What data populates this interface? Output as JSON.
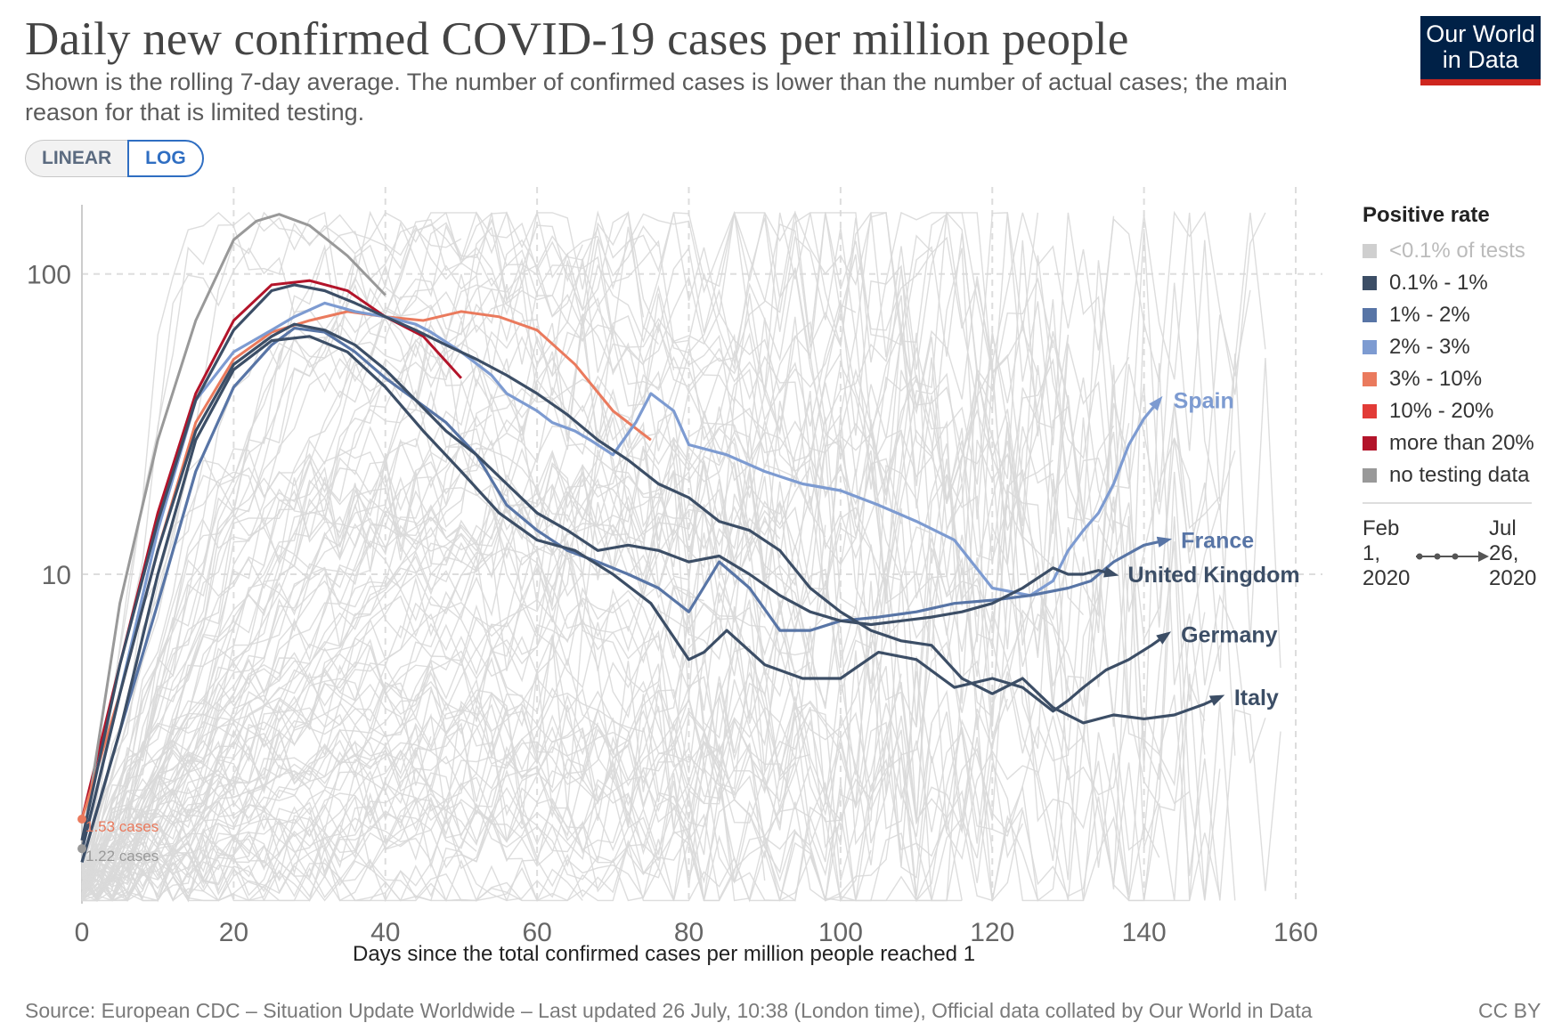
{
  "header": {
    "title": "Daily new confirmed COVID-19 cases per million people",
    "subtitle": "Shown is the rolling 7-day average. The number of confirmed cases is lower than the number of actual cases; the main reason for that is limited testing.",
    "logo_line1": "Our World",
    "logo_line2": "in Data"
  },
  "toggle": {
    "linear_label": "LINEAR",
    "log_label": "LOG",
    "selected": "LOG"
  },
  "footer": {
    "source": "Source: European CDC – Situation Update Worldwide – Last updated 26 July, 10:38 (London time), Official data collated by Our World in Data",
    "license": "CC BY"
  },
  "legend": {
    "title": "Positive rate",
    "items": [
      {
        "label": "<0.1% of tests",
        "color": "#cfcfcf",
        "muted": true
      },
      {
        "label": "0.1% - 1%",
        "color": "#3c4e66"
      },
      {
        "label": "1% - 2%",
        "color": "#5875a6"
      },
      {
        "label": "2% - 3%",
        "color": "#7d9bd1"
      },
      {
        "label": "3% - 10%",
        "color": "#ea7a5d"
      },
      {
        "label": "10% - 20%",
        "color": "#e23b37"
      },
      {
        "label": "more than 20%",
        "color": "#b3142a"
      },
      {
        "label": "no testing data",
        "color": "#999999"
      }
    ],
    "timeline_start": "Feb\n1,\n2020",
    "timeline_end": "Jul\n26,\n2020"
  },
  "chart_data": {
    "type": "line",
    "title": "Daily new confirmed COVID-19 cases per million people",
    "xlabel": "Days since the total confirmed cases per million people reached 1",
    "ylabel": "",
    "yscale": "log",
    "xlim": [
      0,
      160
    ],
    "ylim": [
      0.8,
      170
    ],
    "xticks": [
      0,
      20,
      40,
      60,
      80,
      100,
      120,
      140,
      160
    ],
    "yticks": [
      {
        "value": 10,
        "label": "10"
      },
      {
        "value": 100,
        "label": "100"
      }
    ],
    "grid": true,
    "start_annotations": [
      {
        "label": "1.53 cases",
        "x": 0,
        "y": 1.53,
        "color": "#ea7a5d"
      },
      {
        "label": "1.22 cases",
        "x": 0,
        "y": 1.22,
        "color": "#999999"
      }
    ],
    "series": [
      {
        "name": "Spain",
        "label_color": "#7d9bd1",
        "line_color": "#7d9bd1",
        "x": [
          0,
          5,
          10,
          15,
          20,
          25,
          28,
          32,
          36,
          40,
          44,
          46,
          50,
          54,
          56,
          60,
          62,
          65,
          67,
          70,
          73,
          75,
          78,
          80,
          85,
          90,
          95,
          100,
          105,
          110,
          115,
          120,
          125,
          128,
          130,
          132,
          134,
          136,
          138,
          140,
          142
        ],
        "y": [
          1.2,
          4,
          14,
          38,
          55,
          65,
          72,
          80,
          75,
          72,
          68,
          64,
          55,
          46,
          40,
          35,
          32,
          30,
          28,
          25,
          32,
          40,
          35,
          27,
          25,
          22,
          20,
          19,
          17,
          15,
          13,
          9,
          8.5,
          9.5,
          12,
          14,
          16,
          20,
          27,
          33,
          38
        ]
      },
      {
        "name": "France",
        "label_color": "#5875a6",
        "line_color": "#5875a6",
        "x": [
          0,
          5,
          10,
          15,
          20,
          25,
          28,
          32,
          36,
          40,
          44,
          48,
          52,
          56,
          60,
          64,
          68,
          72,
          76,
          80,
          84,
          88,
          92,
          96,
          100,
          105,
          110,
          115,
          120,
          125,
          130,
          133,
          136,
          140,
          143
        ],
        "y": [
          1.1,
          3,
          8,
          22,
          42,
          58,
          66,
          64,
          55,
          45,
          38,
          32,
          25,
          17,
          14,
          12,
          11,
          10,
          9,
          7.5,
          11,
          9,
          6.5,
          6.5,
          7,
          7.2,
          7.5,
          8,
          8.2,
          8.5,
          9,
          9.5,
          11,
          12.5,
          13
        ]
      },
      {
        "name": "United Kingdom",
        "label_color": "#3c4e66",
        "line_color": "#3c4e66",
        "x": [
          0,
          5,
          10,
          15,
          20,
          25,
          28,
          32,
          36,
          40,
          44,
          48,
          52,
          56,
          60,
          64,
          68,
          72,
          76,
          80,
          84,
          88,
          92,
          96,
          100,
          104,
          108,
          112,
          116,
          120,
          124,
          128,
          130,
          132,
          134,
          136
        ],
        "y": [
          1.2,
          4,
          12,
          30,
          50,
          62,
          68,
          65,
          58,
          48,
          38,
          30,
          25,
          20,
          16,
          14,
          12,
          12.5,
          12,
          11,
          11.5,
          10,
          8.5,
          7.5,
          7,
          6.8,
          7,
          7.2,
          7.5,
          8,
          9,
          10.5,
          10,
          10,
          10.3,
          10
        ]
      },
      {
        "name": "Germany",
        "label_color": "#3c4e66",
        "line_color": "#3c4e66",
        "x": [
          0,
          5,
          10,
          15,
          20,
          25,
          30,
          35,
          40,
          45,
          50,
          55,
          60,
          65,
          70,
          75,
          80,
          82,
          85,
          90,
          95,
          100,
          105,
          110,
          115,
          120,
          124,
          128,
          130,
          132,
          135,
          138,
          141,
          143
        ],
        "y": [
          1.1,
          3,
          10,
          28,
          48,
          60,
          62,
          55,
          42,
          30,
          22,
          16,
          13,
          12,
          10,
          8,
          5.2,
          5.5,
          6.5,
          5,
          4.5,
          4.5,
          5.5,
          5.2,
          4.2,
          4.5,
          4.2,
          3.5,
          3.8,
          4.2,
          4.8,
          5.2,
          5.8,
          6.3
        ]
      },
      {
        "name": "Italy",
        "label_color": "#3c4e66",
        "line_color": "#3c4e66",
        "x": [
          0,
          5,
          10,
          15,
          20,
          25,
          28,
          32,
          36,
          40,
          44,
          48,
          52,
          56,
          60,
          64,
          68,
          72,
          76,
          80,
          84,
          88,
          92,
          96,
          100,
          104,
          108,
          112,
          116,
          120,
          124,
          128,
          132,
          136,
          140,
          144,
          148,
          150
        ],
        "y": [
          1.3,
          5,
          15,
          38,
          65,
          88,
          92,
          88,
          80,
          72,
          65,
          58,
          52,
          46,
          40,
          34,
          28,
          24,
          20,
          18,
          15,
          14,
          12,
          9,
          7.5,
          6.5,
          6,
          5.8,
          4.5,
          4,
          4.5,
          3.6,
          3.2,
          3.4,
          3.3,
          3.4,
          3.7,
          3.9
        ]
      }
    ],
    "highlight_extra": [
      {
        "color": "#b3142a",
        "x": [
          0,
          5,
          10,
          15,
          20,
          25,
          30,
          35,
          40,
          45,
          50
        ],
        "y": [
          1.53,
          5,
          16,
          40,
          70,
          92,
          95,
          88,
          72,
          62,
          45
        ]
      },
      {
        "color": "#999999",
        "x": [
          0,
          5,
          10,
          15,
          20,
          23,
          26,
          30,
          35,
          40
        ],
        "y": [
          1.22,
          8,
          28,
          70,
          130,
          150,
          158,
          145,
          115,
          85
        ]
      },
      {
        "color": "#ea7a5d",
        "x": [
          0,
          5,
          10,
          15,
          20,
          25,
          30,
          35,
          40,
          45,
          50,
          55,
          60,
          65,
          70,
          75
        ],
        "y": [
          1.53,
          4,
          12,
          32,
          52,
          64,
          70,
          75,
          72,
          70,
          75,
          72,
          65,
          50,
          35,
          28
        ]
      }
    ]
  }
}
